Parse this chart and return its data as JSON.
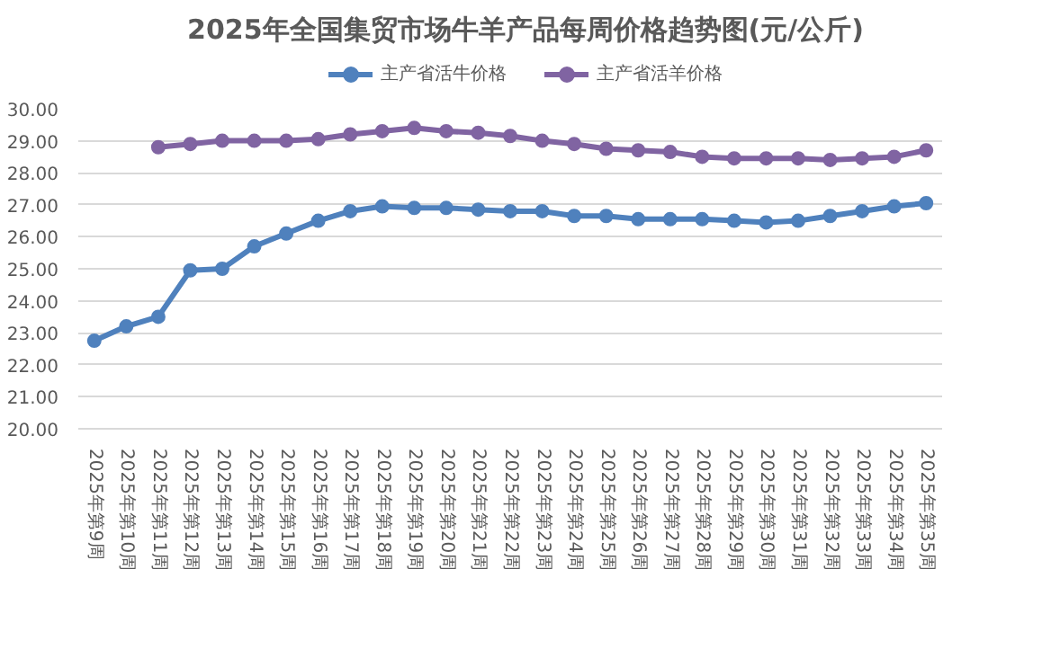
{
  "chart_data": {
    "type": "line",
    "title": "2025年全国集贸市场牛羊产品每周价格趋势图(元/公斤)",
    "categories": [
      "2025年第9周",
      "2025年第10周",
      "2025年第11周",
      "2025年第12周",
      "2025年第13周",
      "2025年第14周",
      "2025年第15周",
      "2025年第16周",
      "2025年第17周",
      "2025年第18周",
      "2025年第19周",
      "2025年第20周",
      "2025年第21周",
      "2025年第22周",
      "2025年第23周",
      "2025年第24周",
      "2025年第25周",
      "2025年第26周",
      "2025年第27周",
      "2025年第28周",
      "2025年第29周",
      "2025年第30周",
      "2025年第31周",
      "2025年第32周",
      "2025年第33周",
      "2025年第34周",
      "2025年第35周"
    ],
    "series": [
      {
        "name": "主产省活牛价格",
        "color": "#4f81bd",
        "values": [
          22.75,
          23.2,
          23.5,
          24.95,
          25.0,
          25.7,
          26.1,
          26.5,
          26.8,
          26.95,
          26.9,
          26.9,
          26.85,
          26.8,
          26.8,
          26.65,
          26.65,
          26.55,
          26.55,
          26.55,
          26.5,
          26.45,
          26.5,
          26.65,
          26.8,
          26.95,
          27.05
        ]
      },
      {
        "name": "主产省活羊价格",
        "color": "#8064a2",
        "values": [
          null,
          null,
          28.8,
          28.9,
          29.0,
          29.0,
          29.0,
          29.05,
          29.2,
          29.3,
          29.4,
          29.3,
          29.25,
          29.15,
          29.0,
          28.9,
          28.75,
          28.7,
          28.65,
          28.5,
          28.45,
          28.45,
          28.45,
          28.4,
          28.45,
          28.5,
          28.7
        ]
      }
    ],
    "ylim": [
      20,
      30
    ],
    "yticks": [
      {
        "value": 20,
        "label": "20.00"
      },
      {
        "value": 21,
        "label": "21.00"
      },
      {
        "value": 22,
        "label": "22.00"
      },
      {
        "value": 23,
        "label": "23.00"
      },
      {
        "value": 24,
        "label": "24.00"
      },
      {
        "value": 25,
        "label": "25.00"
      },
      {
        "value": 26,
        "label": "26.00"
      },
      {
        "value": 27,
        "label": "27.00"
      },
      {
        "value": 28,
        "label": "28.00"
      },
      {
        "value": 29,
        "label": "29.00"
      },
      {
        "value": 30,
        "label": "30.00"
      }
    ],
    "grid": "y",
    "legend": "top",
    "marker": "circle",
    "line_style": "solid"
  }
}
